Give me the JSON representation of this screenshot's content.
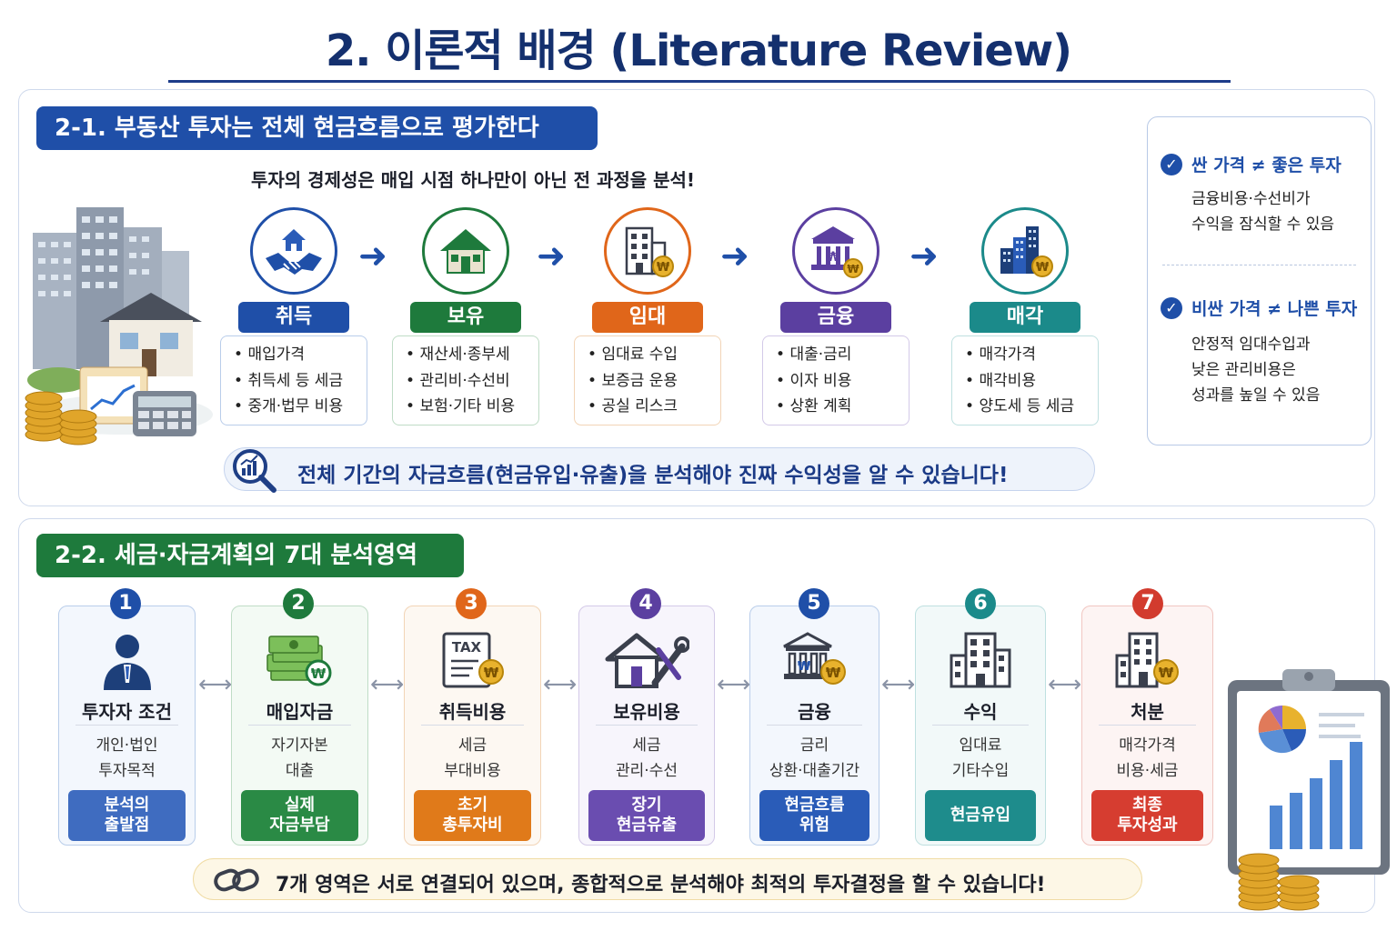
{
  "title": "2. 이론적 배경 (Literature Review)",
  "section1": {
    "title": "2-1. 부동산 투자는 전체 현금흐름으로 평가한다",
    "subtitle": "투자의 경제성은 매입 시점 하나만이 아닌 전 과정을 분석!",
    "stages": [
      {
        "label": "취득",
        "icon": "handshake-house-icon",
        "color": "#1f4fa8",
        "items": [
          "매입가격",
          "취득세 등 세금",
          "중개·법무 비용"
        ]
      },
      {
        "label": "보유",
        "icon": "house-icon",
        "color": "#1e7a3c",
        "items": [
          "재산세·종부세",
          "관리비·수선비",
          "보험·기타 비용"
        ]
      },
      {
        "label": "임대",
        "icon": "building-coin-icon",
        "color": "#e0661a",
        "items": [
          "임대료 수입",
          "보증금 운용",
          "공실 리스크"
        ]
      },
      {
        "label": "금융",
        "icon": "bank-icon",
        "color": "#5b3fa0",
        "items": [
          "대출·금리",
          "이자 비용",
          "상환 계획"
        ]
      },
      {
        "label": "매각",
        "icon": "city-coin-icon",
        "color": "#1b8a8a",
        "items": [
          "매각가격",
          "매각비용",
          "양도세 등 세금"
        ]
      }
    ],
    "summary": "전체 기간의 자금흐름(현금유입·유출)을 분석해야 진짜 수익성을 알 수 있습니다!",
    "side": {
      "h1": "싼 가격 ≠ 좋은 투자",
      "p1": [
        "금융비용·수선비가",
        "수익을 잠식할 수 있음"
      ],
      "h2": "비싼 가격 ≠ 나쁜 투자",
      "p2": [
        "안정적 임대수입과",
        "낮은 관리비용은",
        "성과를 높일 수 있음"
      ]
    }
  },
  "section2": {
    "title": "2-2. 세금·자금계획의 7대 분석영역",
    "cards": [
      {
        "num": "1",
        "name": "투자자 조건",
        "d1": "개인·법인",
        "d2": "투자목적",
        "tag1": "분석의",
        "tag2": "출발점",
        "color": "#1f4fa8",
        "tagColor": "#3f6cc0",
        "border": "#b9cdea",
        "bg": "#f3f7fd",
        "icon": "investor-icon"
      },
      {
        "num": "2",
        "name": "매입자금",
        "d1": "자기자본",
        "d2": "대출",
        "tag1": "실제",
        "tag2": "자금부담",
        "color": "#1e7a3c",
        "tagColor": "#2a8a45",
        "border": "#bfdcc6",
        "bg": "#f3faf4",
        "icon": "money-stack-icon"
      },
      {
        "num": "3",
        "name": "취득비용",
        "d1": "세금",
        "d2": "부대비용",
        "tag1": "초기",
        "tag2": "총투자비",
        "color": "#e0661a",
        "tagColor": "#e07a1a",
        "border": "#f2d4b6",
        "bg": "#fdf8f2",
        "icon": "tax-document-icon"
      },
      {
        "num": "4",
        "name": "보유비용",
        "d1": "세금",
        "d2": "관리·수선",
        "tag1": "장기",
        "tag2": "현금유출",
        "color": "#5b3fa0",
        "tagColor": "#6a4db0",
        "border": "#d3c9e8",
        "bg": "#f7f5fc",
        "icon": "house-tools-icon"
      },
      {
        "num": "5",
        "name": "금융",
        "d1": "금리",
        "d2": "상환·대출기간",
        "tag1": "현금흐름",
        "tag2": "위험",
        "color": "#1f4fa8",
        "tagColor": "#2a5cb8",
        "border": "#b9cdea",
        "bg": "#f3f7fd",
        "icon": "bank-coin-icon"
      },
      {
        "num": "6",
        "name": "수익",
        "d1": "임대료",
        "d2": "기타수입",
        "tag1": "현금유입",
        "tag2": "",
        "color": "#1b8a8a",
        "tagColor": "#1e8c8c",
        "border": "#bfe0e0",
        "bg": "#f2f9f9",
        "icon": "office-building-icon"
      },
      {
        "num": "7",
        "name": "처분",
        "d1": "매각가격",
        "d2": "비용·세금",
        "tag1": "최종",
        "tag2": "투자성과",
        "color": "#d23b2e",
        "tagColor": "#d63d30",
        "border": "#f1c6c1",
        "bg": "#fdf4f3",
        "icon": "building-sale-icon"
      }
    ],
    "summary": "7개 영역은 서로 연결되어 있으며, 종합적으로 분석해야 최적의 투자결정을 할 수 있습니다!"
  }
}
